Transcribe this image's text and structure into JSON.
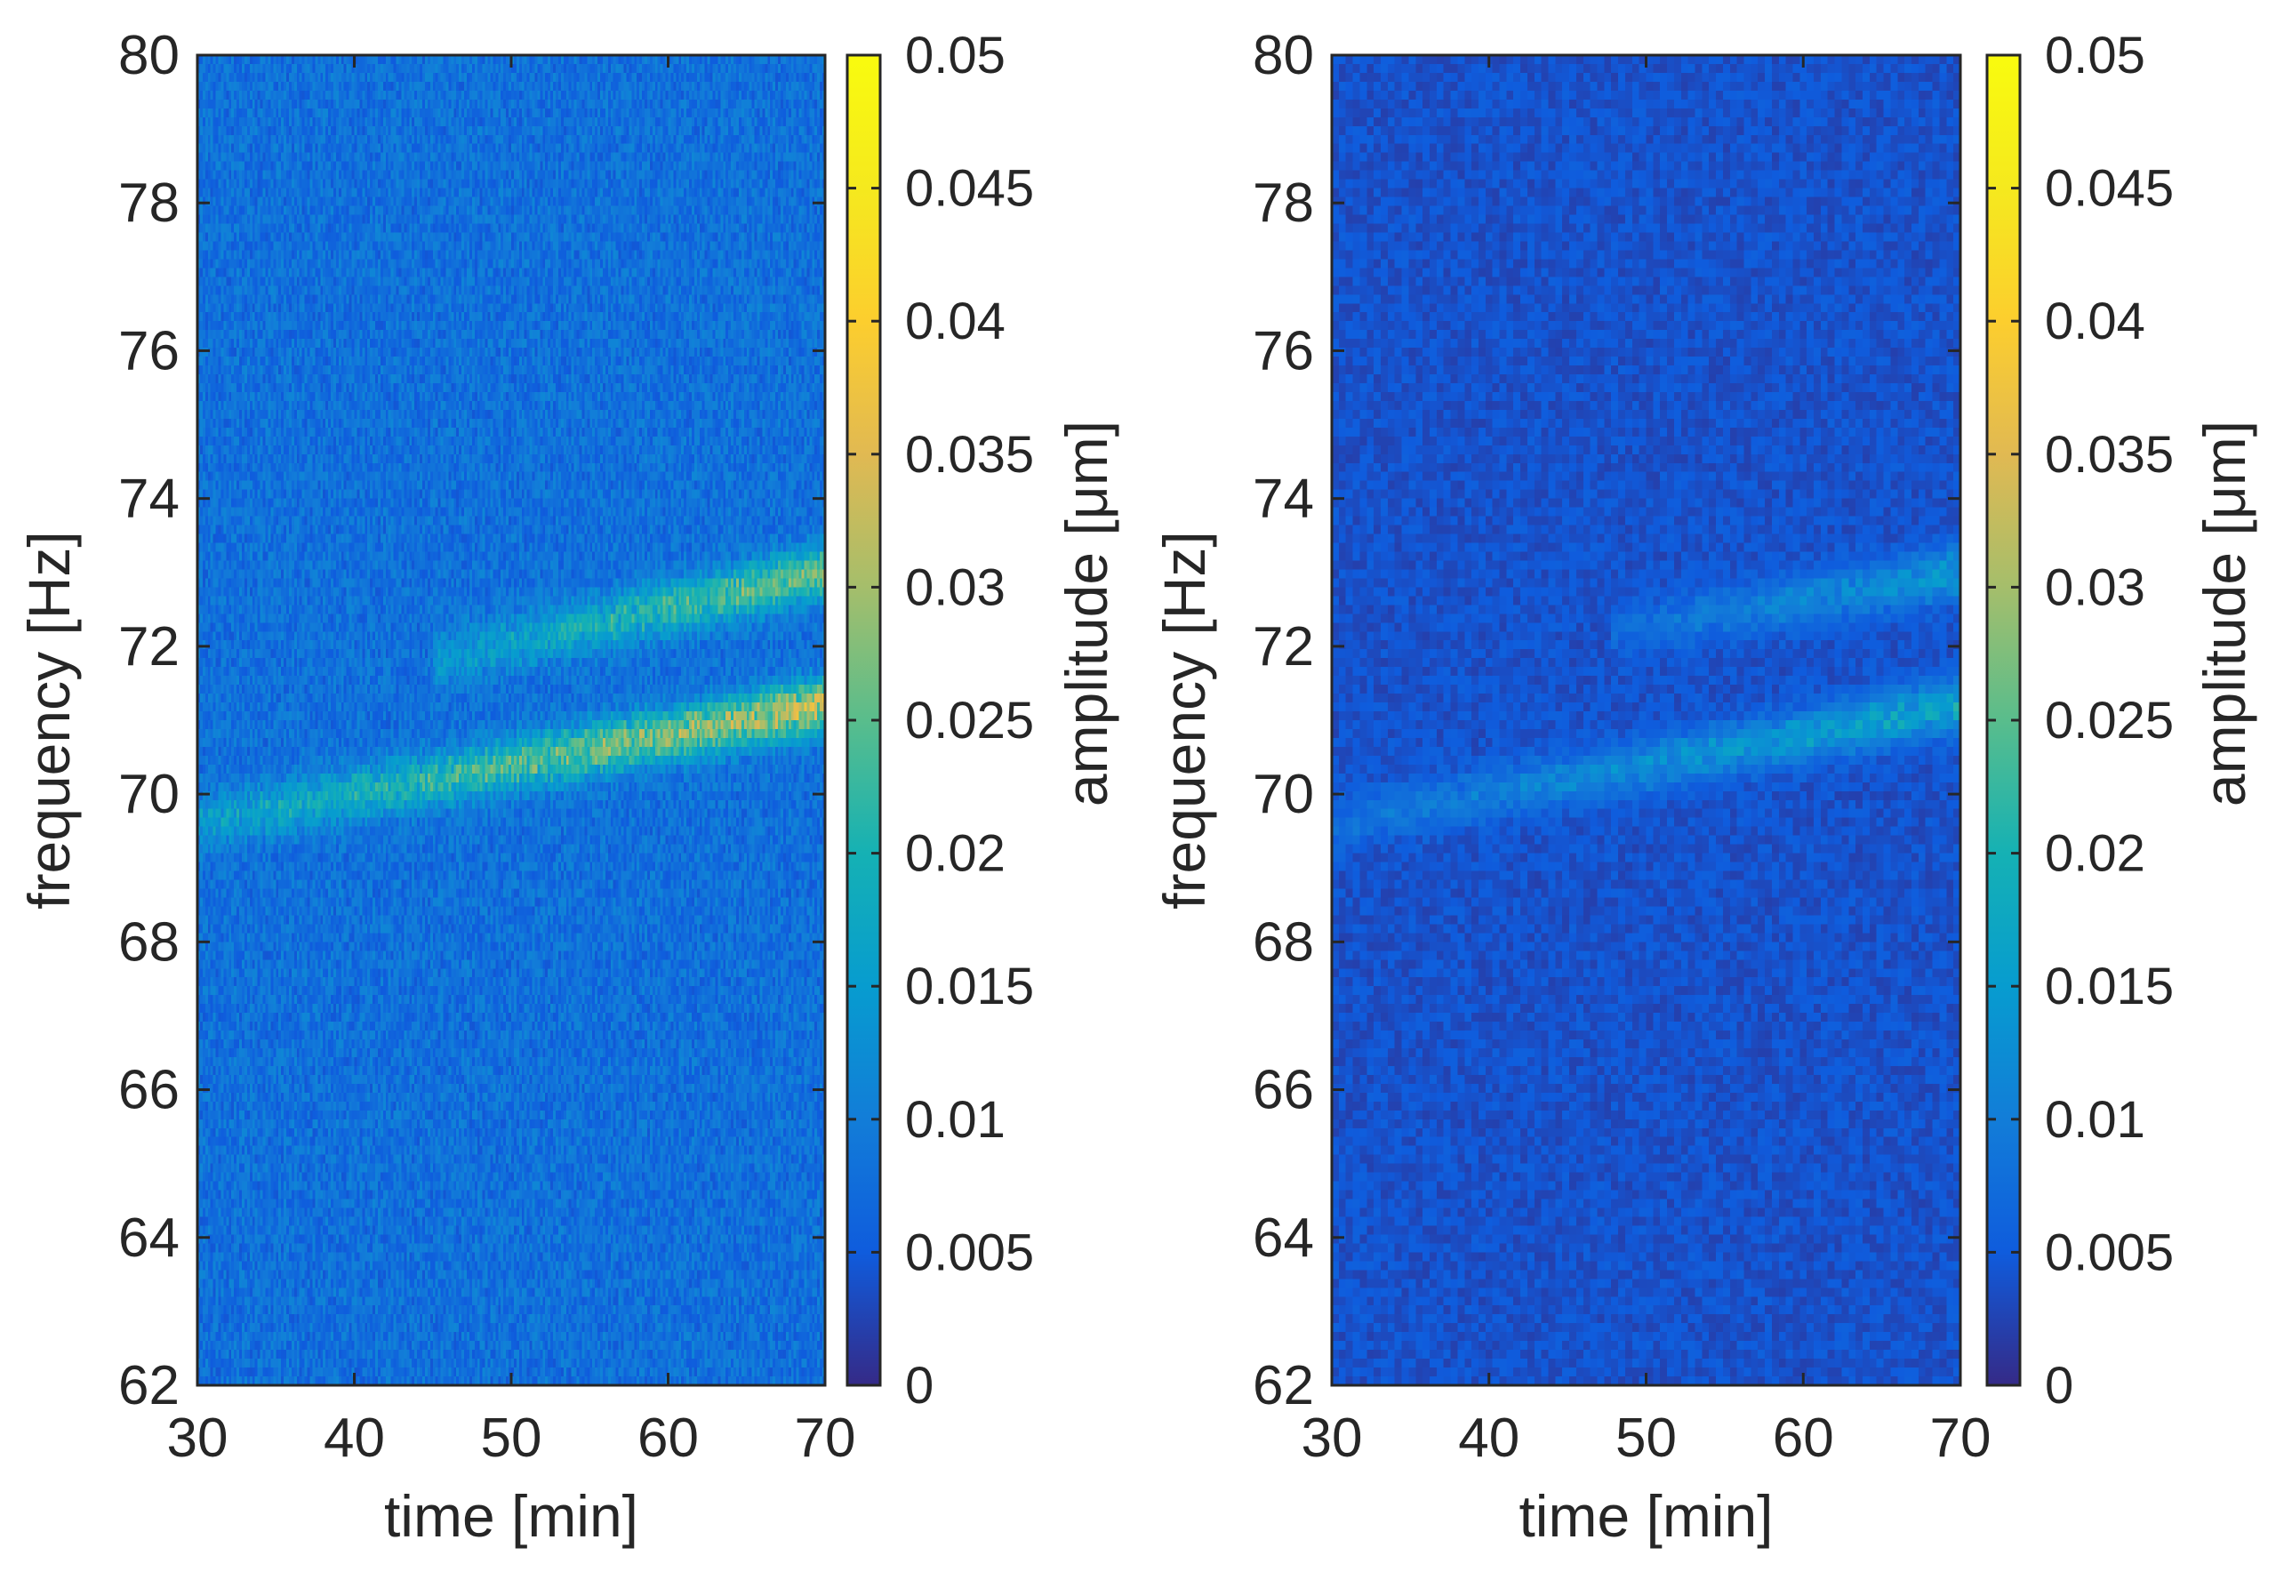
{
  "chart_data": [
    {
      "type": "heatmap",
      "panel": "left",
      "xlabel": "time [min]",
      "ylabel": "frequency [Hz]",
      "colorbar_label": "amplitude [μm]",
      "xlim": [
        30,
        70
      ],
      "ylim": [
        62,
        80
      ],
      "clim": [
        0,
        0.05
      ],
      "colormap": "parula",
      "x_ticks": [
        30,
        40,
        50,
        60,
        70
      ],
      "y_ticks": [
        62,
        64,
        66,
        68,
        70,
        72,
        74,
        76,
        78,
        80
      ],
      "colorbar_ticks": [
        0,
        0.005,
        0.01,
        0.015,
        0.02,
        0.025,
        0.03,
        0.035,
        0.04,
        0.045,
        0.05
      ],
      "background_amplitude": 0.008,
      "bands": [
        {
          "x": [
            30,
            70
          ],
          "y": [
            69.6,
            71.2
          ],
          "peak_amplitude": 0.028
        },
        {
          "x": [
            45,
            70
          ],
          "y": [
            71.8,
            73.0
          ],
          "peak_amplitude": 0.022
        }
      ]
    },
    {
      "type": "heatmap",
      "panel": "right",
      "xlabel": "time [min]",
      "ylabel": "frequency [Hz]",
      "colorbar_label": "amplitude [μm]",
      "xlim": [
        30,
        70
      ],
      "ylim": [
        62,
        80
      ],
      "clim": [
        0,
        0.05
      ],
      "colormap": "parula",
      "x_ticks": [
        30,
        40,
        50,
        60,
        70
      ],
      "y_ticks": [
        62,
        64,
        66,
        68,
        70,
        72,
        74,
        76,
        78,
        80
      ],
      "colorbar_ticks": [
        0,
        0.005,
        0.01,
        0.015,
        0.02,
        0.025,
        0.03,
        0.035,
        0.04,
        0.045,
        0.05
      ],
      "background_amplitude": 0.004,
      "bands": [
        {
          "x": [
            30,
            70
          ],
          "y": [
            69.6,
            71.2
          ],
          "peak_amplitude": 0.015
        },
        {
          "x": [
            48,
            70
          ],
          "y": [
            72.2,
            73.0
          ],
          "peak_amplitude": 0.012
        }
      ]
    }
  ]
}
